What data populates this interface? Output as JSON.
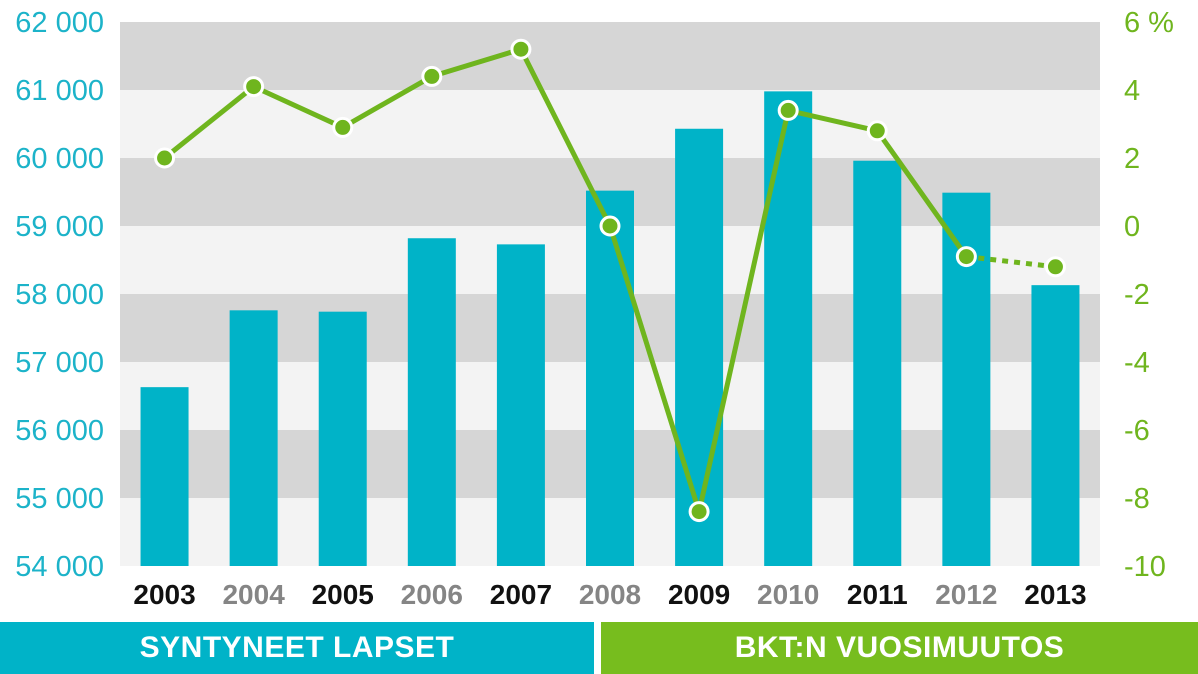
{
  "chart_data": {
    "type": "bar+line",
    "categories": [
      "2003",
      "2004",
      "2005",
      "2006",
      "2007",
      "2008",
      "2009",
      "2010",
      "2011",
      "2012",
      "2013"
    ],
    "series": [
      {
        "name": "SYNTYNEET LAPSET",
        "type": "bar",
        "axis": "left",
        "values": [
          56630,
          57760,
          57740,
          58820,
          58730,
          59520,
          60430,
          60980,
          59960,
          59490,
          58130
        ]
      },
      {
        "name": "BKT:N VUOSIMUUTOS",
        "type": "line",
        "axis": "right",
        "values": [
          2.0,
          4.1,
          2.9,
          4.4,
          5.2,
          0.0,
          -8.4,
          3.4,
          2.8,
          -0.9,
          -1.2
        ],
        "projected_from_index": 9
      }
    ],
    "left_axis": {
      "ylim": [
        54000,
        62000
      ],
      "ticks": [
        54000,
        55000,
        56000,
        57000,
        58000,
        59000,
        60000,
        61000,
        62000
      ],
      "tick_labels": [
        "54 000",
        "55 000",
        "56 000",
        "57 000",
        "58 000",
        "59 000",
        "60 000",
        "61 000",
        "62 000"
      ]
    },
    "right_axis": {
      "ylim": [
        -10,
        6
      ],
      "ticks": [
        -10,
        -8,
        -6,
        -4,
        -2,
        0,
        2,
        4,
        6
      ],
      "tick_labels": [
        "-10",
        "-8",
        "-6",
        "-4",
        "-2",
        "0",
        "2",
        "4",
        "6 %"
      ]
    },
    "grid": "alternating horizontal bands",
    "colors": {
      "bar": "#00b3c8",
      "line": "#6fb51e",
      "band_dark": "#d6d6d6",
      "band_light": "#f3f3f3",
      "year_dark": "#111111",
      "year_light": "#858585"
    }
  },
  "legend": {
    "births_label": "SYNTYNEET LAPSET",
    "gdp_label": "BKT:N VUOSIMUUTOS"
  }
}
